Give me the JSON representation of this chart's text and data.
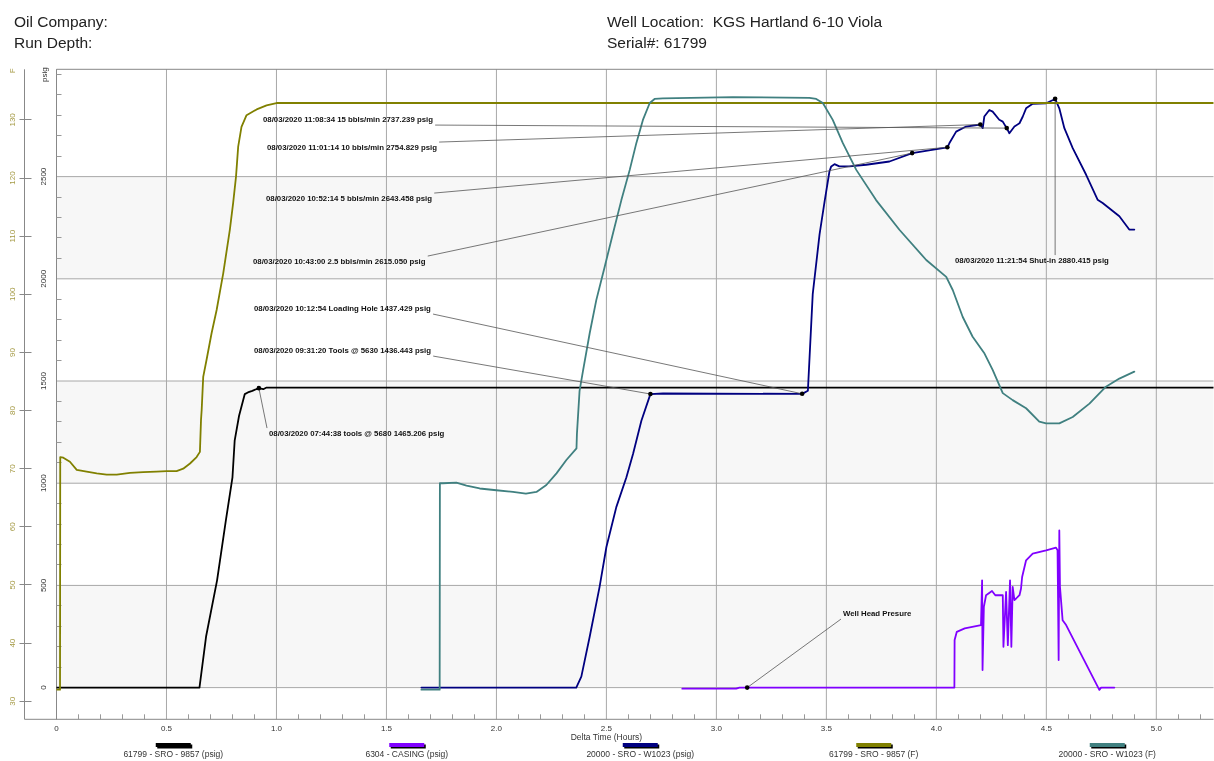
{
  "chart_data": {
    "type": "line",
    "annotations": [
      "Oil Company:",
      "Run Depth:",
      "Well Location:  KGS Hartland 6-10 Viola",
      "Serial#: 61799",
      {
        "text": "08/03/2020 11:08:34 15 bbls/min 2737.239 psig",
        "x": 4.32,
        "y": 2737.239
      },
      {
        "text": "08/03/2020 11:01:14 10 bbls/min 2754.829 psig",
        "x": 4.2,
        "y": 2754.829
      },
      {
        "text": "08/03/2020 10:52:14 5 bbls/min 2643.458 psig",
        "x": 4.05,
        "y": 2643.458
      },
      {
        "text": "08/03/2020 10:43:00 2.5 bbls/min 2615.050 psig",
        "x": 3.89,
        "y": 2615.05
      },
      {
        "text": "08/03/2020 10:12:54 Loading Hole 1437.429 psig",
        "x": 3.39,
        "y": 1437.429
      },
      {
        "text": "08/03/2020 09:31:20 Tools @ 5630 1436.443 psig",
        "x": 2.7,
        "y": 1436.443
      },
      {
        "text": "08/03/2020 07:44:38 tools @ 5680 1465.206 psig",
        "x": 0.92,
        "y": 1465.206
      },
      {
        "text": "08/03/2020 11:21:54 Shut-in 2880.415 psig",
        "x": 4.54,
        "y": 2880.415
      },
      {
        "text": "Well Head Presure",
        "x": 3.14,
        "y": 0
      }
    ],
    "xlabel": "Delta Time (Hours)",
    "ylabel": "psig",
    "y2label": "F",
    "xlim": [
      0,
      5.26
    ],
    "xticks": [
      0,
      {
        "value": 0.1,
        "label": null
      },
      {
        "value": 0.2,
        "label": null
      },
      {
        "value": 0.3,
        "label": null
      },
      {
        "value": 0.4,
        "label": null
      },
      0.5,
      {
        "value": 0.6,
        "label": null
      },
      {
        "value": 0.7,
        "label": null
      },
      {
        "value": 0.8,
        "label": null
      },
      {
        "value": 0.9,
        "label": null
      },
      {
        "value": 1,
        "label": "1.0"
      },
      {
        "value": 1.1,
        "label": null
      },
      {
        "value": 1.2,
        "label": null
      },
      {
        "value": 1.3,
        "label": null
      },
      {
        "value": 1.4,
        "label": null
      },
      1.5,
      {
        "value": 1.6,
        "label": null
      },
      {
        "value": 1.7,
        "label": null
      },
      {
        "value": 1.8,
        "label": null
      },
      {
        "value": 1.9,
        "label": null
      },
      {
        "value": 2,
        "label": "2.0"
      },
      {
        "value": 2.1,
        "label": null
      },
      {
        "value": 2.2,
        "label": null
      },
      {
        "value": 2.3,
        "label": null
      },
      {
        "value": 2.4,
        "label": null
      },
      2.5,
      {
        "value": 2.6,
        "label": null
      },
      {
        "value": 2.7,
        "label": null
      },
      {
        "value": 2.8,
        "label": null
      },
      {
        "value": 2.9,
        "label": null
      },
      {
        "value": 3,
        "label": "3.0"
      },
      {
        "value": 3.1,
        "label": null
      },
      {
        "value": 3.2,
        "label": null
      },
      {
        "value": 3.3,
        "label": null
      },
      {
        "value": 3.4,
        "label": null
      },
      3.5,
      {
        "value": 3.6,
        "label": null
      },
      {
        "value": 3.7,
        "label": null
      },
      {
        "value": 3.8,
        "label": null
      },
      {
        "value": 3.9,
        "label": null
      },
      {
        "value": 4,
        "label": "4.0"
      },
      {
        "value": 4.1,
        "label": null
      },
      {
        "value": 4.2,
        "label": null
      },
      {
        "value": 4.3,
        "label": null
      },
      {
        "value": 4.4,
        "label": null
      },
      4.5,
      {
        "value": 4.6,
        "label": null
      },
      {
        "value": 4.7,
        "label": null
      },
      {
        "value": 4.8,
        "label": null
      },
      {
        "value": 4.9,
        "label": null
      },
      {
        "value": 5,
        "label": "5.0"
      },
      {
        "value": 5.1,
        "label": null
      },
      {
        "value": 5.2,
        "label": null
      }
    ],
    "ylim": [
      -155,
      3025
    ],
    "yticks": [
      0,
      {
        "value": 100,
        "label": null
      },
      {
        "value": 200,
        "label": null
      },
      {
        "value": 300,
        "label": null
      },
      {
        "value": 400,
        "label": null
      },
      500,
      {
        "value": 600,
        "label": null
      },
      {
        "value": 700,
        "label": null
      },
      {
        "value": 800,
        "label": null
      },
      {
        "value": 900,
        "label": null
      },
      1000,
      {
        "value": 1100,
        "label": null
      },
      {
        "value": 1200,
        "label": null
      },
      {
        "value": 1300,
        "label": null
      },
      {
        "value": 1400,
        "label": null
      },
      1500,
      {
        "value": 1600,
        "label": null
      },
      {
        "value": 1700,
        "label": null
      },
      {
        "value": 1800,
        "label": null
      },
      {
        "value": 1900,
        "label": null
      },
      2000,
      {
        "value": 2100,
        "label": null
      },
      {
        "value": 2200,
        "label": null
      },
      {
        "value": 2300,
        "label": null
      },
      {
        "value": 2400,
        "label": null
      },
      2500,
      {
        "value": 2600,
        "label": null
      },
      {
        "value": 2700,
        "label": null
      },
      {
        "value": 2800,
        "label": null
      },
      {
        "value": 2900,
        "label": null
      },
      {
        "value": 3000,
        "label": null
      }
    ],
    "y2lim": [
      26.9,
      138.7
    ],
    "y2ticks": [
      30,
      40,
      50,
      60,
      70,
      80,
      90,
      100,
      110,
      120,
      130
    ],
    "grid": true,
    "legend": "bottom",
    "series": [
      {
        "name": "61799 - SRO - 9857 (psig)",
        "color": "#000000",
        "x": [
          0,
          0.65,
          0.68,
          0.73,
          0.77,
          0.8,
          0.81,
          0.83,
          0.856,
          0.87,
          0.89,
          0.92,
          0.94,
          0.955,
          5.26
        ],
        "values": [
          0,
          0,
          250,
          525,
          818,
          1029,
          1208,
          1330,
          1436,
          1444,
          1452,
          1465,
          1460,
          1468,
          1468
        ]
      },
      {
        "name": "6304 - CASING (psig)",
        "color": "#8000ff",
        "x": [
          2.845,
          3.09,
          3.105,
          4.082,
          4.083,
          4.093,
          4.129,
          4.203,
          4.208,
          4.21,
          4.216,
          4.226,
          4.253,
          4.268,
          4.302,
          4.305,
          4.317,
          4.325,
          4.335,
          4.341,
          4.347,
          4.355,
          4.378,
          4.385,
          4.39,
          4.408,
          4.438,
          4.499,
          4.544,
          4.551,
          4.556,
          4.559,
          4.562,
          4.574,
          4.59,
          4.741,
          4.749,
          4.809
        ],
        "values": [
          -5,
          -5,
          0,
          0,
          233,
          273,
          290,
          306,
          525,
          86,
          395,
          452,
          473,
          452,
          452,
          200,
          468,
          208,
          525,
          200,
          493,
          428,
          452,
          485,
          541,
          623,
          656,
          672,
          685,
          672,
          135,
          769,
          493,
          330,
          306,
          -11,
          0,
          0
        ]
      },
      {
        "name": "20000 - SRO - W1023 (psig)",
        "color": "#000080",
        "x": [
          1.659,
          2.363,
          2.386,
          2.424,
          2.469,
          2.5,
          2.545,
          2.591,
          2.621,
          2.659,
          2.7,
          2.757,
          3.39,
          3.416,
          3.438,
          3.469,
          3.492,
          3.514,
          3.522,
          3.537,
          3.559,
          3.605,
          3.681,
          3.787,
          3.89,
          4.05,
          4.059,
          4.09,
          4.135,
          4.2,
          4.211,
          4.218,
          4.241,
          4.256,
          4.286,
          4.302,
          4.32,
          4.332,
          4.355,
          4.378,
          4.393,
          4.408,
          4.438,
          4.499,
          4.54,
          4.559,
          4.582,
          4.62,
          4.681,
          4.733,
          4.756,
          4.832,
          4.877,
          4.9
        ],
        "values": [
          0,
          0,
          54,
          249,
          493,
          688,
          883,
          1029,
          1143,
          1306,
          1436,
          1439,
          1437,
          1452,
          1925,
          2217,
          2379,
          2525,
          2550,
          2561,
          2550,
          2550,
          2558,
          2574,
          2615,
          2643,
          2663,
          2720,
          2745,
          2755,
          2737,
          2794,
          2826,
          2818,
          2778,
          2769,
          2737,
          2712,
          2745,
          2761,
          2794,
          2834,
          2856,
          2859,
          2880,
          2834,
          2737,
          2639,
          2509,
          2387,
          2371,
          2306,
          2241,
          2241
        ]
      },
      {
        "name": "61799 - SRO - 9857 (F)",
        "color": "#808000",
        "axis": "y2",
        "x": [
          0,
          0.016,
          0.017,
          0.031,
          0.061,
          0.092,
          0.137,
          0.183,
          0.228,
          0.274,
          0.334,
          0.394,
          0.455,
          0.501,
          0.546,
          0.576,
          0.607,
          0.637,
          0.652,
          0.657,
          0.66,
          0.667,
          0.682,
          0.705,
          0.728,
          0.758,
          0.788,
          0.803,
          0.816,
          0.826,
          0.841,
          0.864,
          0.91,
          0.955,
          1.0,
          5.26
        ],
        "values": [
          32,
          32,
          72,
          71.9,
          71.2,
          69.8,
          69.5,
          69.2,
          69,
          69,
          69.3,
          69.4,
          69.5,
          69.6,
          69.6,
          70,
          70.9,
          72,
          72.9,
          78.4,
          80.1,
          85.8,
          88.7,
          93.3,
          97.3,
          103.6,
          111.1,
          115.7,
          120.2,
          125.4,
          128.8,
          130.8,
          131.8,
          132.5,
          132.9,
          132.9
        ]
      },
      {
        "name": "20000 - SRO - W1023 (F)",
        "color": "#408080",
        "axis": "y2",
        "x": [
          1.659,
          1.742,
          1.743,
          1.757,
          1.818,
          1.864,
          1.924,
          2.0,
          2.075,
          2.134,
          2.182,
          2.227,
          2.273,
          2.318,
          2.364,
          2.366,
          2.378,
          2.393,
          2.424,
          2.454,
          2.492,
          2.53,
          2.568,
          2.606,
          2.636,
          2.666,
          2.697,
          2.719,
          2.757,
          3.075,
          3.423,
          3.454,
          3.484,
          3.529,
          3.575,
          3.636,
          3.726,
          3.832,
          3.954,
          4.045,
          4.075,
          4.12,
          4.165,
          4.219,
          4.256,
          4.302,
          4.347,
          4.408,
          4.468,
          4.499,
          4.559,
          4.62,
          4.696,
          4.771,
          4.832,
          4.9
        ],
        "values": [
          32,
          32,
          67.5,
          67.5,
          67.6,
          67.1,
          66.6,
          66.3,
          66,
          65.7,
          66,
          67.2,
          69.2,
          71.5,
          73.5,
          76,
          83.4,
          86.7,
          93.3,
          99,
          104.7,
          110.5,
          116.2,
          121.4,
          126,
          130,
          132.9,
          133.6,
          133.7,
          133.9,
          133.8,
          133.6,
          132.9,
          130,
          126,
          121.4,
          116.2,
          111.1,
          105.9,
          103,
          100.7,
          96.1,
          92.7,
          89.8,
          87,
          83,
          81.8,
          80.4,
          78.1,
          77.8,
          77.8,
          78.9,
          81.2,
          84.1,
          85.5,
          86.7
        ]
      }
    ]
  }
}
